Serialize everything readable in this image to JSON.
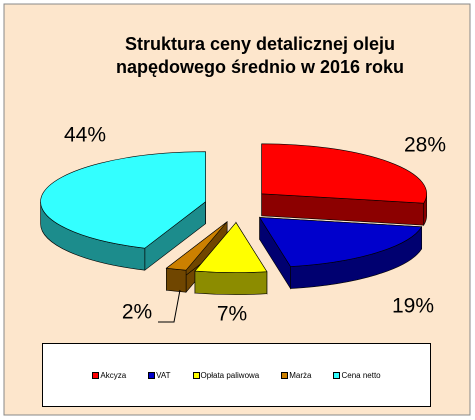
{
  "chart_data": {
    "type": "pie3d",
    "title": "Struktura ceny detalicznej oleju napędowego średnio w 2016 roku",
    "categories": [
      "Akcyza",
      "VAT",
      "Opłata paliwowa",
      "Marża",
      "Cena netto"
    ],
    "values": [
      28,
      19,
      7,
      2,
      44
    ],
    "value_labels": [
      "28%",
      "19%",
      "7%",
      "2%",
      "44%"
    ],
    "colors": [
      "#ff0000",
      "#0000cc",
      "#ffff00",
      "#cc8000",
      "#33ffff"
    ],
    "legend": "bottom"
  }
}
